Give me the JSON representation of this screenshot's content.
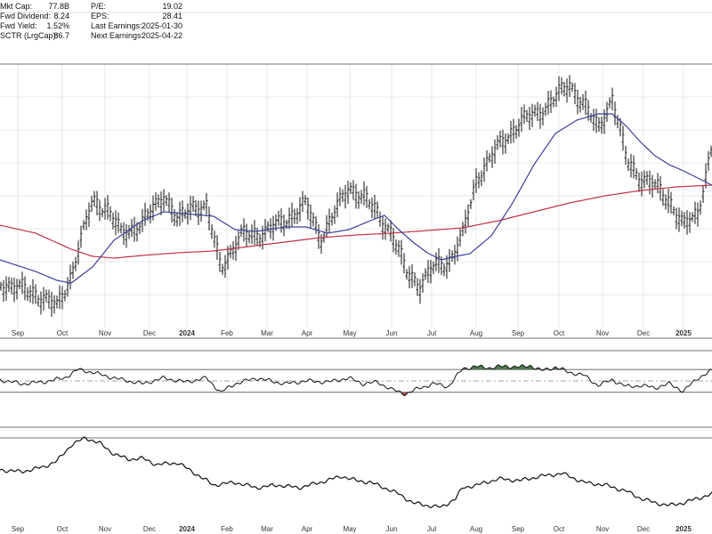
{
  "stats": [
    {
      "label": "Mkt Cap:",
      "value": "77.8B"
    },
    {
      "label": "Fwd Dividend:",
      "value": "8.24"
    },
    {
      "label": "Fwd Yield:",
      "value": "1.52%"
    },
    {
      "label": "SCTR (LrgCap):",
      "value": "86.7"
    },
    {
      "label": "P/E:",
      "value": "19.02"
    },
    {
      "label": "EPS:",
      "value": "28.41"
    },
    {
      "label": "Last Earnings:",
      "value": "2025-01-30"
    },
    {
      "label": "Next Earnings:",
      "value": "2025-04-22"
    }
  ],
  "colors": {
    "price": "#111111",
    "ma_short": "#3a3f9a",
    "ma_long": "#c0334a",
    "overbought_fill": "#4e7f4e",
    "oversold_fill": "#c24b4b",
    "grid": "#d8d8d8"
  },
  "chart_data": [
    {
      "type": "ohlc",
      "role": "price",
      "x_ticks": [
        "Sep",
        "Oct",
        "Nov",
        "Dec",
        "2024",
        "Feb",
        "Mar",
        "Apr",
        "May",
        "Jun",
        "Jul",
        "Aug",
        "Sep",
        "Oct",
        "Nov",
        "Dec",
        "2025"
      ],
      "bold_ticks": [
        "2024",
        "2025"
      ],
      "grid": true,
      "price_anchors": [
        [
          0,
          318
        ],
        [
          0.05,
          330
        ],
        [
          0.08,
          345
        ],
        [
          0.1,
          310
        ],
        [
          0.13,
          225
        ],
        [
          0.15,
          235
        ],
        [
          0.17,
          262
        ],
        [
          0.2,
          252
        ],
        [
          0.23,
          218
        ],
        [
          0.25,
          250
        ],
        [
          0.27,
          230
        ],
        [
          0.29,
          235
        ],
        [
          0.31,
          300
        ],
        [
          0.34,
          265
        ],
        [
          0.37,
          262
        ],
        [
          0.4,
          248
        ],
        [
          0.43,
          230
        ],
        [
          0.45,
          268
        ],
        [
          0.47,
          240
        ],
        [
          0.49,
          210
        ],
        [
          0.51,
          222
        ],
        [
          0.53,
          240
        ],
        [
          0.55,
          262
        ],
        [
          0.57,
          305
        ],
        [
          0.59,
          320
        ],
        [
          0.61,
          300
        ],
        [
          0.63,
          295
        ],
        [
          0.65,
          265
        ],
        [
          0.67,
          200
        ],
        [
          0.7,
          165
        ],
        [
          0.73,
          138
        ],
        [
          0.76,
          125
        ],
        [
          0.78,
          110
        ],
        [
          0.8,
          95
        ],
        [
          0.82,
          118
        ],
        [
          0.84,
          145
        ],
        [
          0.86,
          110
        ],
        [
          0.88,
          180
        ],
        [
          0.9,
          200
        ],
        [
          0.92,
          210
        ],
        [
          0.94,
          225
        ],
        [
          0.96,
          255
        ],
        [
          0.98,
          240
        ],
        [
          1.0,
          165
        ]
      ],
      "ma_short_anchors": [
        [
          0,
          292
        ],
        [
          0.05,
          305
        ],
        [
          0.08,
          315
        ],
        [
          0.1,
          318
        ],
        [
          0.13,
          300
        ],
        [
          0.16,
          270
        ],
        [
          0.2,
          248
        ],
        [
          0.23,
          238
        ],
        [
          0.26,
          240
        ],
        [
          0.3,
          243
        ],
        [
          0.33,
          258
        ],
        [
          0.36,
          260
        ],
        [
          0.4,
          255
        ],
        [
          0.43,
          255
        ],
        [
          0.46,
          262
        ],
        [
          0.49,
          258
        ],
        [
          0.52,
          248
        ],
        [
          0.54,
          242
        ],
        [
          0.56,
          258
        ],
        [
          0.58,
          272
        ],
        [
          0.6,
          284
        ],
        [
          0.62,
          292
        ],
        [
          0.64,
          288
        ],
        [
          0.66,
          285
        ],
        [
          0.69,
          265
        ],
        [
          0.72,
          228
        ],
        [
          0.75,
          185
        ],
        [
          0.78,
          150
        ],
        [
          0.81,
          135
        ],
        [
          0.84,
          128
        ],
        [
          0.86,
          128
        ],
        [
          0.88,
          142
        ],
        [
          0.9,
          160
        ],
        [
          0.92,
          175
        ],
        [
          0.94,
          185
        ],
        [
          0.96,
          192
        ],
        [
          0.98,
          200
        ],
        [
          1.0,
          208
        ]
      ],
      "ma_long_anchors": [
        [
          0,
          253
        ],
        [
          0.05,
          262
        ],
        [
          0.1,
          280
        ],
        [
          0.13,
          288
        ],
        [
          0.16,
          290
        ],
        [
          0.2,
          287
        ],
        [
          0.25,
          284
        ],
        [
          0.3,
          282
        ],
        [
          0.35,
          277
        ],
        [
          0.4,
          272
        ],
        [
          0.45,
          267
        ],
        [
          0.5,
          264
        ],
        [
          0.55,
          262
        ],
        [
          0.6,
          259
        ],
        [
          0.65,
          256
        ],
        [
          0.7,
          248
        ],
        [
          0.75,
          238
        ],
        [
          0.8,
          228
        ],
        [
          0.85,
          220
        ],
        [
          0.9,
          214
        ],
        [
          0.95,
          210
        ],
        [
          1.0,
          208
        ]
      ]
    },
    {
      "type": "line",
      "role": "indicator",
      "upper_band": 70,
      "lower_band": 30,
      "midline": 50,
      "ylim": [
        0,
        100
      ],
      "anchors": [
        [
          0,
          52
        ],
        [
          0.03,
          45
        ],
        [
          0.06,
          48
        ],
        [
          0.09,
          55
        ],
        [
          0.11,
          70
        ],
        [
          0.13,
          65
        ],
        [
          0.16,
          55
        ],
        [
          0.2,
          45
        ],
        [
          0.23,
          55
        ],
        [
          0.26,
          48
        ],
        [
          0.29,
          55
        ],
        [
          0.31,
          30
        ],
        [
          0.33,
          45
        ],
        [
          0.36,
          55
        ],
        [
          0.4,
          45
        ],
        [
          0.43,
          50
        ],
        [
          0.46,
          48
        ],
        [
          0.49,
          55
        ],
        [
          0.51,
          45
        ],
        [
          0.53,
          48
        ],
        [
          0.55,
          35
        ],
        [
          0.57,
          27
        ],
        [
          0.59,
          38
        ],
        [
          0.61,
          45
        ],
        [
          0.63,
          40
        ],
        [
          0.65,
          72
        ],
        [
          0.67,
          75
        ],
        [
          0.69,
          73
        ],
        [
          0.71,
          76
        ],
        [
          0.73,
          74
        ],
        [
          0.745,
          77
        ],
        [
          0.76,
          68
        ],
        [
          0.78,
          74
        ],
        [
          0.8,
          65
        ],
        [
          0.82,
          60
        ],
        [
          0.84,
          42
        ],
        [
          0.86,
          52
        ],
        [
          0.88,
          40
        ],
        [
          0.9,
          42
        ],
        [
          0.92,
          38
        ],
        [
          0.94,
          45
        ],
        [
          0.96,
          32
        ],
        [
          0.98,
          55
        ],
        [
          1.0,
          68
        ]
      ]
    },
    {
      "type": "line",
      "role": "relative-strength",
      "x_ticks": [
        "Sep",
        "Oct",
        "Nov",
        "Dec",
        "2024",
        "Feb",
        "Mar",
        "Apr",
        "May",
        "Jun",
        "Jul",
        "Aug",
        "Sep",
        "Oct",
        "Nov",
        "Dec",
        "2025"
      ],
      "bold_ticks": [
        "2024",
        "2025"
      ],
      "anchors": [
        [
          0,
          528
        ],
        [
          0.03,
          530
        ],
        [
          0.06,
          525
        ],
        [
          0.08,
          518
        ],
        [
          0.1,
          500
        ],
        [
          0.12,
          492
        ],
        [
          0.14,
          498
        ],
        [
          0.16,
          510
        ],
        [
          0.18,
          516
        ],
        [
          0.2,
          515
        ],
        [
          0.22,
          522
        ],
        [
          0.25,
          520
        ],
        [
          0.28,
          535
        ],
        [
          0.3,
          545
        ],
        [
          0.33,
          542
        ],
        [
          0.36,
          548
        ],
        [
          0.39,
          545
        ],
        [
          0.42,
          548
        ],
        [
          0.45,
          542
        ],
        [
          0.48,
          535
        ],
        [
          0.5,
          540
        ],
        [
          0.52,
          542
        ],
        [
          0.54,
          548
        ],
        [
          0.56,
          555
        ],
        [
          0.58,
          565
        ],
        [
          0.6,
          568
        ],
        [
          0.62,
          570
        ],
        [
          0.64,
          560
        ],
        [
          0.65,
          548
        ],
        [
          0.67,
          545
        ],
        [
          0.7,
          538
        ],
        [
          0.73,
          540
        ],
        [
          0.76,
          535
        ],
        [
          0.79,
          532
        ],
        [
          0.82,
          542
        ],
        [
          0.85,
          545
        ],
        [
          0.88,
          552
        ],
        [
          0.9,
          560
        ],
        [
          0.92,
          565
        ],
        [
          0.94,
          568
        ],
        [
          0.96,
          565
        ],
        [
          0.98,
          560
        ],
        [
          1.0,
          555
        ]
      ]
    }
  ]
}
